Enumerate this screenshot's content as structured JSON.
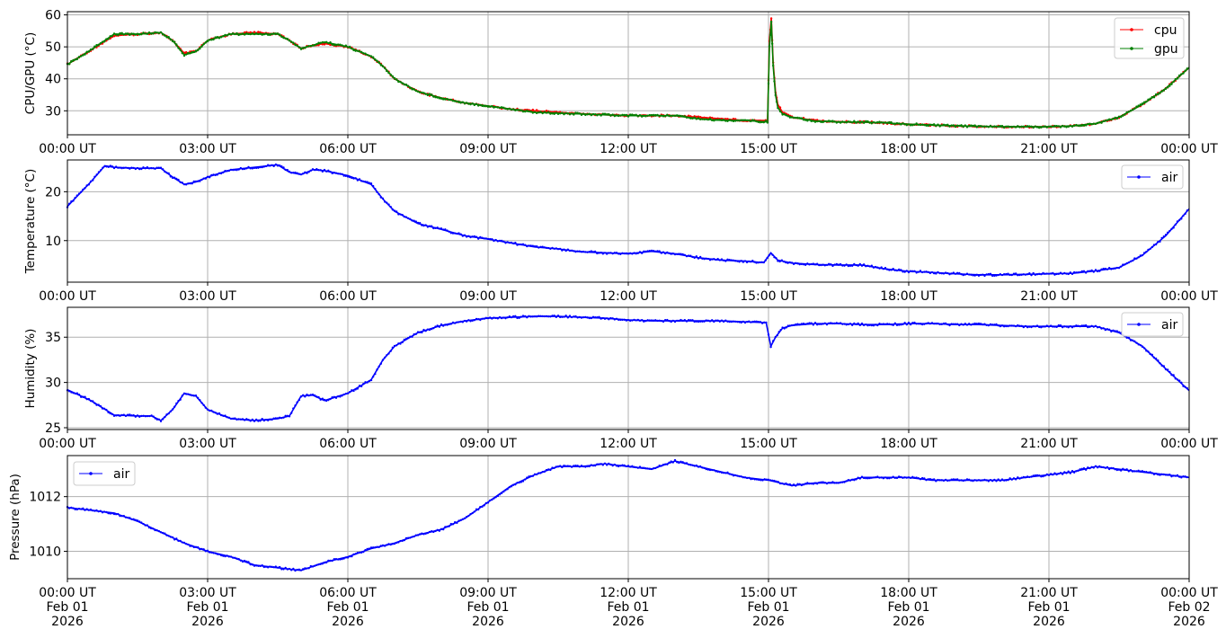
{
  "chart_data": [
    {
      "type": "line",
      "ylabel": "CPU/GPU (°C)",
      "ylim": [
        22.5,
        61
      ],
      "yticks": [
        30,
        40,
        50,
        60
      ],
      "xtick_labels": [
        "00:00 UT",
        "03:00 UT",
        "06:00 UT",
        "09:00 UT",
        "12:00 UT",
        "15:00 UT",
        "18:00 UT",
        "21:00 UT",
        "00:00 UT"
      ],
      "grid": true,
      "legend_position": "top-right",
      "series": [
        {
          "name": "cpu",
          "color": "#ff0000",
          "x_hours": [
            0,
            0.5,
            1,
            1.5,
            2,
            2.25,
            2.5,
            2.75,
            3,
            3.5,
            4,
            4.5,
            4.75,
            5,
            5.25,
            5.5,
            6,
            6.25,
            6.5,
            6.75,
            7,
            7.5,
            8,
            8.5,
            9,
            9.5,
            10,
            11,
            12,
            13,
            13.5,
            14,
            14.5,
            14.98,
            15.02,
            15.06,
            15.1,
            15.15,
            15.2,
            15.3,
            15.5,
            16,
            16.5,
            17,
            17.5,
            18,
            19,
            20,
            21,
            21.5,
            22,
            22.5,
            23,
            23.5,
            24
          ],
          "values": [
            44.5,
            49,
            53.5,
            54,
            54.5,
            52,
            48,
            48.5,
            52,
            54,
            54.5,
            54,
            52,
            49.5,
            50.5,
            51,
            50,
            48.5,
            47,
            44,
            40,
            36,
            34,
            32.5,
            31.5,
            30.5,
            30,
            29,
            28.5,
            28.5,
            28,
            27.5,
            27,
            27,
            52,
            59,
            45,
            36,
            32,
            29.5,
            28,
            27,
            26.5,
            26.5,
            26.2,
            25.8,
            25.3,
            25,
            25,
            25.3,
            26,
            28,
            32,
            37,
            43.5
          ]
        },
        {
          "name": "gpu",
          "color": "#008000",
          "x_hours": [
            0,
            0.5,
            1,
            1.5,
            2,
            2.25,
            2.5,
            2.75,
            3,
            3.5,
            4,
            4.5,
            4.75,
            5,
            5.25,
            5.5,
            6,
            6.25,
            6.5,
            6.75,
            7,
            7.5,
            8,
            8.5,
            9,
            9.5,
            10,
            11,
            12,
            13,
            13.5,
            14,
            14.5,
            14.98,
            15.02,
            15.06,
            15.1,
            15.15,
            15.2,
            15.3,
            15.5,
            16,
            16.5,
            17,
            17.5,
            18,
            19,
            20,
            21,
            21.5,
            22,
            22.5,
            23,
            23.5,
            24
          ],
          "values": [
            44.5,
            49,
            54,
            54,
            54.5,
            52,
            47.5,
            48.5,
            52,
            54,
            54,
            54,
            52,
            49.5,
            50.5,
            51.5,
            50,
            48.5,
            47,
            44,
            40,
            36,
            34,
            32.5,
            31.5,
            30.5,
            29.5,
            29,
            28.5,
            28.5,
            27.5,
            27,
            27,
            26.5,
            50,
            58,
            44,
            35,
            31,
            29,
            28,
            26.8,
            26.5,
            26.5,
            26.2,
            25.8,
            25.3,
            25,
            25,
            25.3,
            26,
            28,
            32,
            37,
            43.5
          ]
        }
      ]
    },
    {
      "type": "line",
      "ylabel": "Temperature (°C)",
      "ylim": [
        1.5,
        26.5
      ],
      "yticks": [
        10,
        20
      ],
      "xtick_labels": [
        "00:00 UT",
        "03:00 UT",
        "06:00 UT",
        "09:00 UT",
        "12:00 UT",
        "15:00 UT",
        "18:00 UT",
        "21:00 UT",
        "00:00 UT"
      ],
      "grid": true,
      "legend_position": "top-right",
      "series": [
        {
          "name": "air",
          "color": "#0000ff",
          "x_hours": [
            0,
            0.5,
            0.8,
            1,
            1.5,
            2,
            2.25,
            2.5,
            2.75,
            3,
            3.5,
            4,
            4.5,
            4.75,
            5,
            5.25,
            5.5,
            6,
            6.5,
            6.75,
            7,
            7.5,
            8,
            8.5,
            9,
            9.5,
            10,
            10.5,
            11,
            11.5,
            12,
            12.5,
            13,
            13.5,
            14,
            14.5,
            14.9,
            15.05,
            15.2,
            15.5,
            16,
            16.5,
            17,
            17.5,
            18,
            18.5,
            19,
            19.5,
            20,
            20.5,
            21,
            21.5,
            22,
            22.5,
            23,
            23.5,
            24
          ],
          "values": [
            17,
            22,
            25.3,
            25,
            24.8,
            24.8,
            23,
            21.5,
            22,
            23,
            24.5,
            25,
            25.5,
            24,
            23.5,
            24.5,
            24.3,
            23.3,
            21.5,
            18.5,
            16,
            13.5,
            12.3,
            11,
            10.3,
            9.5,
            8.7,
            8.3,
            7.7,
            7.5,
            7.3,
            7.8,
            7.3,
            6.5,
            6,
            5.8,
            5.5,
            7.5,
            6,
            5.4,
            5.1,
            5,
            5,
            4.2,
            3.7,
            3.5,
            3.2,
            3,
            3,
            3.1,
            3.2,
            3.3,
            3.8,
            4.5,
            7,
            11,
            16.5
          ]
        }
      ]
    },
    {
      "type": "line",
      "ylabel": "Humidity (%)",
      "ylim": [
        24.8,
        38.3
      ],
      "yticks": [
        25,
        30,
        35
      ],
      "xtick_labels": [
        "00:00 UT",
        "03:00 UT",
        "06:00 UT",
        "09:00 UT",
        "12:00 UT",
        "15:00 UT",
        "18:00 UT",
        "21:00 UT",
        "00:00 UT"
      ],
      "grid": true,
      "legend_position": "top-right",
      "series": [
        {
          "name": "air",
          "color": "#0000ff",
          "x_hours": [
            0,
            0.5,
            1,
            1.5,
            1.8,
            2,
            2.25,
            2.5,
            2.75,
            3,
            3.5,
            4,
            4.5,
            4.75,
            5,
            5.25,
            5.5,
            6,
            6.5,
            6.75,
            7,
            7.5,
            8,
            8.5,
            9,
            9.5,
            10,
            10.5,
            11,
            11.5,
            12,
            12.5,
            13,
            13.5,
            14,
            14.5,
            14.95,
            15.05,
            15.15,
            15.3,
            15.5,
            16,
            16.5,
            17,
            17.5,
            18,
            18.5,
            19,
            19.5,
            20,
            20.5,
            21,
            21.5,
            22,
            22.5,
            23,
            23.5,
            24
          ],
          "values": [
            29.2,
            28,
            26.4,
            26.3,
            26.3,
            25.8,
            27,
            28.8,
            28.5,
            27,
            26,
            25.8,
            26,
            26.3,
            28.5,
            28.6,
            28,
            28.8,
            30.3,
            32.5,
            34,
            35.5,
            36.3,
            36.8,
            37.1,
            37.2,
            37.3,
            37.3,
            37.2,
            37.1,
            36.9,
            36.8,
            36.8,
            36.8,
            36.8,
            36.7,
            36.6,
            34,
            35,
            36,
            36.3,
            36.5,
            36.5,
            36.4,
            36.4,
            36.5,
            36.5,
            36.4,
            36.4,
            36.3,
            36.2,
            36.2,
            36.2,
            36.2,
            35.5,
            34,
            31.5,
            29.1
          ]
        }
      ]
    },
    {
      "type": "line",
      "ylabel": "Pressure (hPa)",
      "ylim": [
        1009.0,
        1013.5
      ],
      "yticks": [
        1010,
        1012
      ],
      "xtick_labels": [
        "00:00 UT\nFeb 01\n2026",
        "03:00 UT\nFeb 01\n2026",
        "06:00 UT\nFeb 01\n2026",
        "09:00 UT\nFeb 01\n2026",
        "12:00 UT\nFeb 01\n2026",
        "15:00 UT\nFeb 01\n2026",
        "18:00 UT\nFeb 01\n2026",
        "21:00 UT\nFeb 01\n2026",
        "00:00 UT\nFeb 02\n2026"
      ],
      "grid": true,
      "legend_position": "top-left",
      "series": [
        {
          "name": "air",
          "color": "#0000ff",
          "x_hours": [
            0,
            0.5,
            1,
            1.5,
            2,
            2.5,
            3,
            3.5,
            4,
            4.5,
            5,
            5.5,
            6,
            6.5,
            7,
            7.5,
            8,
            8.5,
            9,
            9.5,
            10,
            10.5,
            11,
            11.5,
            12,
            12.5,
            13,
            13.5,
            14,
            14.5,
            15,
            15.5,
            16,
            16.5,
            17,
            17.5,
            18,
            18.5,
            19,
            19.5,
            20,
            20.5,
            21,
            21.5,
            22,
            22.5,
            23,
            23.5,
            24
          ],
          "values": [
            1011.6,
            1011.5,
            1011.4,
            1011.1,
            1010.7,
            1010.3,
            1010,
            1009.8,
            1009.5,
            1009.4,
            1009.3,
            1009.6,
            1009.8,
            1010.1,
            1010.3,
            1010.6,
            1010.8,
            1011.2,
            1011.8,
            1012.4,
            1012.8,
            1013.1,
            1013.1,
            1013.2,
            1013.1,
            1013,
            1013.3,
            1013.1,
            1012.9,
            1012.7,
            1012.6,
            1012.4,
            1012.5,
            1012.5,
            1012.7,
            1012.7,
            1012.7,
            1012.6,
            1012.6,
            1012.6,
            1012.6,
            1012.7,
            1012.8,
            1012.9,
            1013.1,
            1013,
            1012.9,
            1012.8,
            1012.7
          ]
        }
      ]
    }
  ]
}
